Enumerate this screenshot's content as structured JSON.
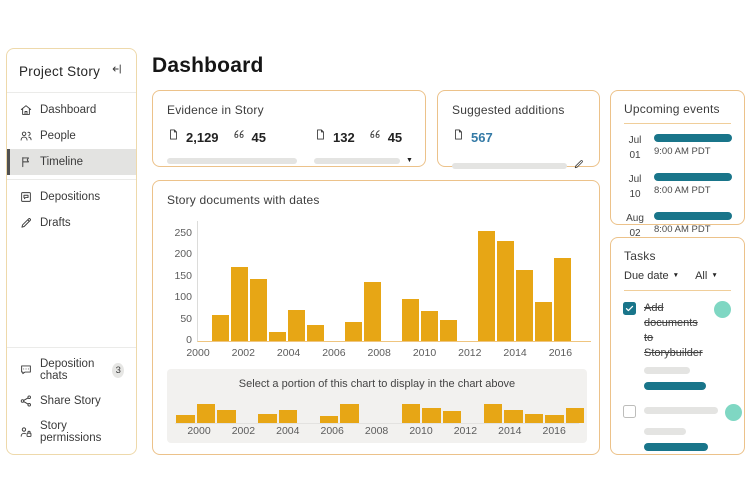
{
  "header": {
    "title": "Dashboard"
  },
  "colors": {
    "amber": "#e7a615",
    "teal": "#19758a",
    "teal_light": "#7fd7c3",
    "blue": "#347aa6",
    "card_border": "#ecc28a"
  },
  "sidebar": {
    "title": "Project Story",
    "sections": [
      {
        "items": [
          {
            "label": "Dashboard",
            "icon": "home",
            "selected": false
          },
          {
            "label": "People",
            "icon": "people",
            "selected": false
          },
          {
            "label": "Timeline",
            "icon": "flag",
            "selected": true
          }
        ]
      },
      {
        "items": [
          {
            "label": "Depositions",
            "icon": "deposition"
          },
          {
            "label": "Drafts",
            "icon": "pen"
          }
        ]
      },
      {
        "items": [
          {
            "label": "Deposition chats",
            "icon": "chat",
            "badge": "3"
          },
          {
            "label": "Share Story",
            "icon": "share"
          },
          {
            "label": "Story permissions",
            "icon": "person-lock"
          }
        ]
      }
    ]
  },
  "evidence_card": {
    "title": "Evidence in Story",
    "groups": [
      {
        "documents": "2,129",
        "quotes": "45"
      },
      {
        "documents": "132",
        "quotes": "45"
      }
    ]
  },
  "suggested_card": {
    "title": "Suggested additions",
    "documents": "567"
  },
  "chart_card": {
    "title": "Story documents with dates",
    "brush_label": "Select a portion of this chart to display in the chart above"
  },
  "chart_data": [
    {
      "type": "bar",
      "title": "Story documents with dates",
      "values": [
        60,
        172,
        145,
        22,
        72,
        38,
        0,
        44,
        138,
        0,
        97,
        70,
        48,
        0,
        255,
        232,
        166,
        91,
        194
      ],
      "xticks": [
        "2000",
        "2002",
        "2004",
        "2006",
        "2008",
        "2010",
        "2012",
        "2014",
        "2016"
      ],
      "yticks": [
        0,
        50,
        100,
        150,
        200,
        250
      ],
      "ylim": [
        0,
        270
      ],
      "grid": false,
      "legend": "none",
      "bar_color": "#e7a615",
      "note": "histogram of story documents per date bin; zero bins render as gaps"
    },
    {
      "type": "bar",
      "role": "brush-overview",
      "label": "Select a portion of this chart to display in the chart above",
      "values": [
        8,
        19,
        13,
        0,
        9,
        13,
        0,
        7,
        19,
        0,
        0,
        19,
        15,
        12,
        0,
        19,
        13,
        9,
        8,
        15
      ],
      "value_unit": "relative-height-px",
      "xticks": [
        "2000",
        "2002",
        "2004",
        "2006",
        "2008",
        "2010",
        "2012",
        "2014",
        "2016"
      ],
      "bar_color": "#e7a615"
    }
  ],
  "events_card": {
    "title": "Upcoming events",
    "events": [
      {
        "month": "Jul",
        "day": "01",
        "time": "9:00 AM PDT"
      },
      {
        "month": "Jul",
        "day": "10",
        "time": "8:00 AM PDT"
      },
      {
        "month": "Aug",
        "day": "02",
        "time": "8:00 AM PDT"
      }
    ]
  },
  "tasks_card": {
    "title": "Tasks",
    "filters": [
      {
        "label": "Due date"
      },
      {
        "label": "All"
      }
    ],
    "tasks": [
      {
        "label": "Add documents to Storybuilder",
        "checked": true,
        "completed": true
      },
      {
        "label": "",
        "checked": false,
        "completed": false
      }
    ]
  }
}
